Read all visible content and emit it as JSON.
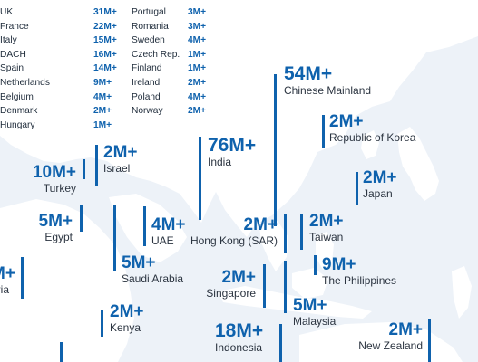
{
  "europe": {
    "col_a": [
      {
        "country": "UK",
        "value": "31M+"
      },
      {
        "country": "France",
        "value": "22M+"
      },
      {
        "country": "Italy",
        "value": "15M+"
      },
      {
        "country": "DACH",
        "value": "16M+"
      },
      {
        "country": "Spain",
        "value": "14M+"
      },
      {
        "country": "Netherlands",
        "value": "9M+"
      },
      {
        "country": "Belgium",
        "value": "4M+"
      },
      {
        "country": "Denmark",
        "value": "2M+"
      },
      {
        "country": "Hungary",
        "value": "1M+"
      }
    ],
    "col_b": [
      {
        "country": "Portugal",
        "value": "3M+"
      },
      {
        "country": "Romania",
        "value": "3M+"
      },
      {
        "country": "Sweden",
        "value": "4M+"
      },
      {
        "country": "Czech Rep.",
        "value": "1M+"
      },
      {
        "country": "Finland",
        "value": "1M+"
      },
      {
        "country": "Ireland",
        "value": "2M+"
      },
      {
        "country": "Poland",
        "value": "4M+"
      },
      {
        "country": "Norway",
        "value": "2M+"
      }
    ]
  },
  "markets": {
    "chinese_mainland": {
      "value": "54M+",
      "name": "Chinese Mainland"
    },
    "korea": {
      "value": "2M+",
      "name": "Republic of Korea"
    },
    "japan": {
      "value": "2M+",
      "name": "Japan"
    },
    "india": {
      "value": "76M+",
      "name": "India"
    },
    "israel": {
      "value": "2M+",
      "name": "Israel"
    },
    "turkey": {
      "value": "10M+",
      "name": "Turkey"
    },
    "egypt": {
      "value": "5M+",
      "name": "Egypt"
    },
    "uae": {
      "value": "4M+",
      "name": "UAE"
    },
    "hong_kong": {
      "value": "2M+",
      "name": "Hong Kong (SAR)"
    },
    "taiwan": {
      "value": "2M+",
      "name": "Taiwan"
    },
    "saudi_arabia": {
      "value": "5M+",
      "name": "Saudi Arabia"
    },
    "philippines": {
      "value": "9M+",
      "name": "The Philippines"
    },
    "singapore": {
      "value": "2M+",
      "name": "Singapore"
    },
    "kenya": {
      "value": "2M+",
      "name": "Kenya"
    },
    "malaysia": {
      "value": "5M+",
      "name": "Malaysia"
    },
    "indonesia": {
      "value": "18M+",
      "name": "Indonesia"
    },
    "new_zealand": {
      "value": "2M+",
      "name": "New Zealand"
    },
    "cut_left_value": "M+",
    "cut_left_name": "eria"
  },
  "colors": {
    "ocean": "#edf2f8",
    "land": "#ffffff",
    "accent": "#0f62ad",
    "text": "#2b3440"
  }
}
